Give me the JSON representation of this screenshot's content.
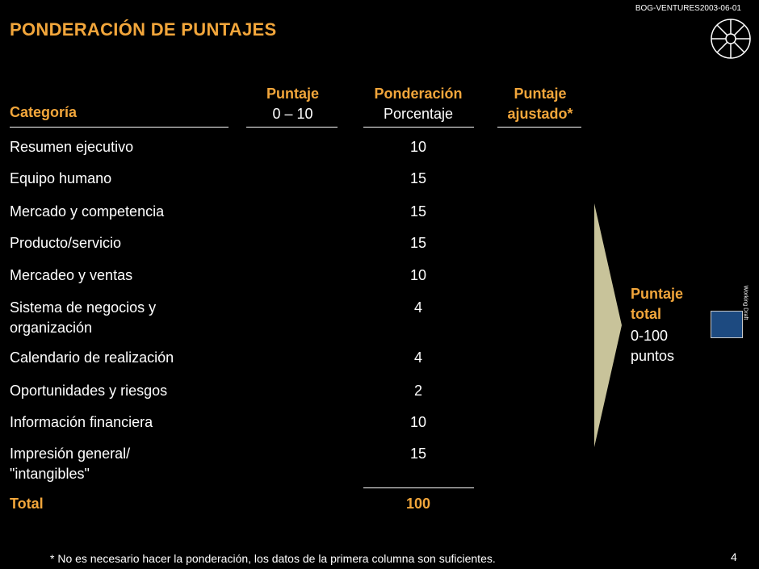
{
  "doc_id": "BOG-VENTURES2003-06-01",
  "title": "PONDERACIÓN DE PUNTAJES",
  "headers": {
    "categoria": "Categoría",
    "puntaje_line1": "Puntaje",
    "puntaje_line2": "0 – 10",
    "ponderacion_line1": "Ponderación",
    "ponderacion_line2": "Porcentaje",
    "ajustado_line1": "Puntaje",
    "ajustado_line2": "ajustado*"
  },
  "rows": [
    {
      "category": "Resumen ejecutivo",
      "weight": "10"
    },
    {
      "category": "Equipo humano",
      "weight": "15"
    },
    {
      "category": "Mercado y competencia",
      "weight": "15"
    },
    {
      "category": "Producto/servicio",
      "weight": "15"
    },
    {
      "category": "Mercadeo y ventas",
      "weight": "10"
    },
    {
      "category": "Sistema de negocios y organización",
      "weight": "4"
    },
    {
      "category": "Calendario de realización",
      "weight": "4"
    },
    {
      "category": "Oportunidades y riesgos",
      "weight": "2"
    },
    {
      "category": "Información financiera",
      "weight": "10"
    },
    {
      "category": "Impresión general/ \"intangibles\"",
      "weight": "15"
    }
  ],
  "total": {
    "label": "Total",
    "value": "100"
  },
  "puntaje_total": {
    "title_line1": "Puntaje",
    "title_line2": "total",
    "range_line1": "0-100",
    "range_line2": "puntos"
  },
  "working_draft": "Working Draft",
  "footnote": "* No es necesario hacer la ponderación, los datos de la primera columna son suficientes.",
  "page_number": "4",
  "colors": {
    "background": "#000000",
    "accent": "#f2a63b",
    "arrow": "#c8c39a",
    "score_box": "#1d4a80"
  }
}
